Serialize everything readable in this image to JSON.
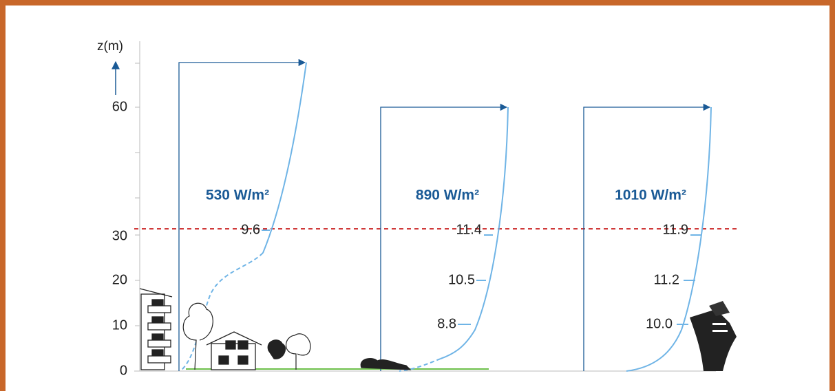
{
  "axis": {
    "label": "z(m)",
    "ticks": [
      "0",
      "10",
      "20",
      "30",
      "60"
    ]
  },
  "profiles": [
    {
      "power": "530 W/m²",
      "speeds": [
        "9.6"
      ]
    },
    {
      "power": "890 W/m²",
      "speeds": [
        "11.4",
        "10.5",
        "8.8"
      ]
    },
    {
      "power": "1010 W/m²",
      "speeds": [
        "11.9",
        "11.2",
        "10.0"
      ]
    }
  ]
}
